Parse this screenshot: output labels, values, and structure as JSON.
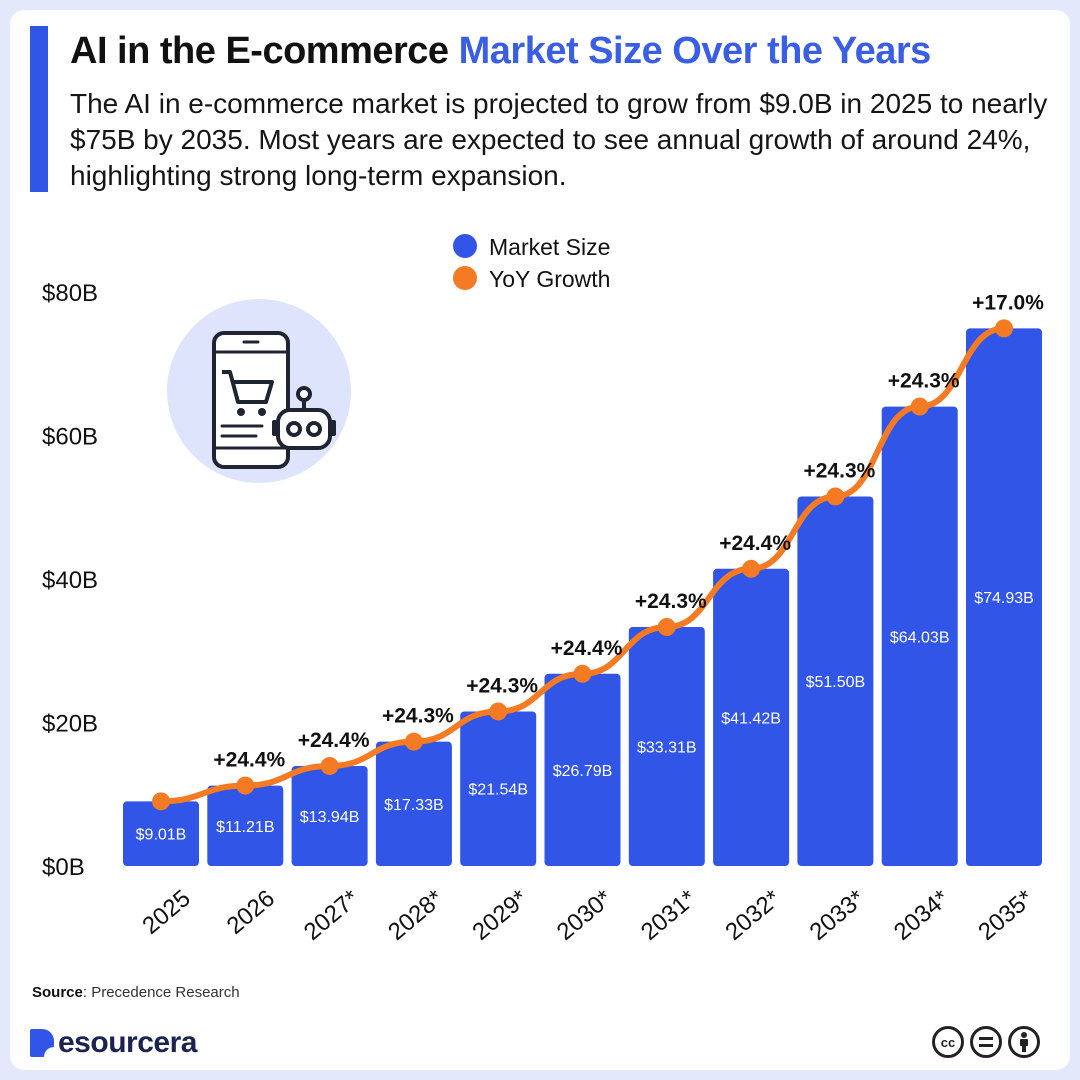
{
  "header": {
    "title_part1": "AI in the E-commerce ",
    "title_part2": "Market Size Over the Years",
    "subtitle": "The AI in e-commerce market is projected to grow from $9.0B in 2025 to nearly $75B by 2035. Most years are expected to see annual growth of around 24%, highlighting strong long-term expansion."
  },
  "chart_data": {
    "type": "bar",
    "categories": [
      "2025",
      "2026",
      "2027*",
      "2028*",
      "2029*",
      "2030*",
      "2031*",
      "2032*",
      "2033*",
      "2034*",
      "2035*"
    ],
    "series": [
      {
        "name": "Market Size",
        "type": "bar",
        "color": "#3155e6",
        "values": [
          9.01,
          11.21,
          13.94,
          17.33,
          21.54,
          26.79,
          33.31,
          41.42,
          51.5,
          64.03,
          74.93
        ],
        "labels": [
          "$9.01B",
          "$11.21B",
          "$13.94B",
          "$17.33B",
          "$21.54B",
          "$26.79B",
          "$33.31B",
          "$41.42B",
          "$51.50B",
          "$64.03B",
          "$74.93B"
        ]
      },
      {
        "name": "YoY Growth",
        "type": "line",
        "color": "#f47a24",
        "values": [
          null,
          24.4,
          24.4,
          24.3,
          24.3,
          24.4,
          24.3,
          24.4,
          24.3,
          24.3,
          17.0
        ],
        "labels": [
          "",
          "+24.4%",
          "+24.4%",
          "+24.3%",
          "+24.3%",
          "+24.4%",
          "+24.3%",
          "+24.4%",
          "+24.3%",
          "+24.3%",
          "+17.0%"
        ]
      }
    ],
    "yticks": [
      "$0B",
      "$20B",
      "$40B",
      "$60B",
      "$80B"
    ],
    "ylim": [
      0,
      80
    ],
    "legend": "top-center",
    "grid": false
  },
  "footer": {
    "source_label": "Source",
    "source_text": ": Precedence Research",
    "brand": "esourcera",
    "license_cc": "cc"
  },
  "icon": {
    "name": "mobile-shopping-robot-icon",
    "bg_color": "#dde4fb"
  }
}
